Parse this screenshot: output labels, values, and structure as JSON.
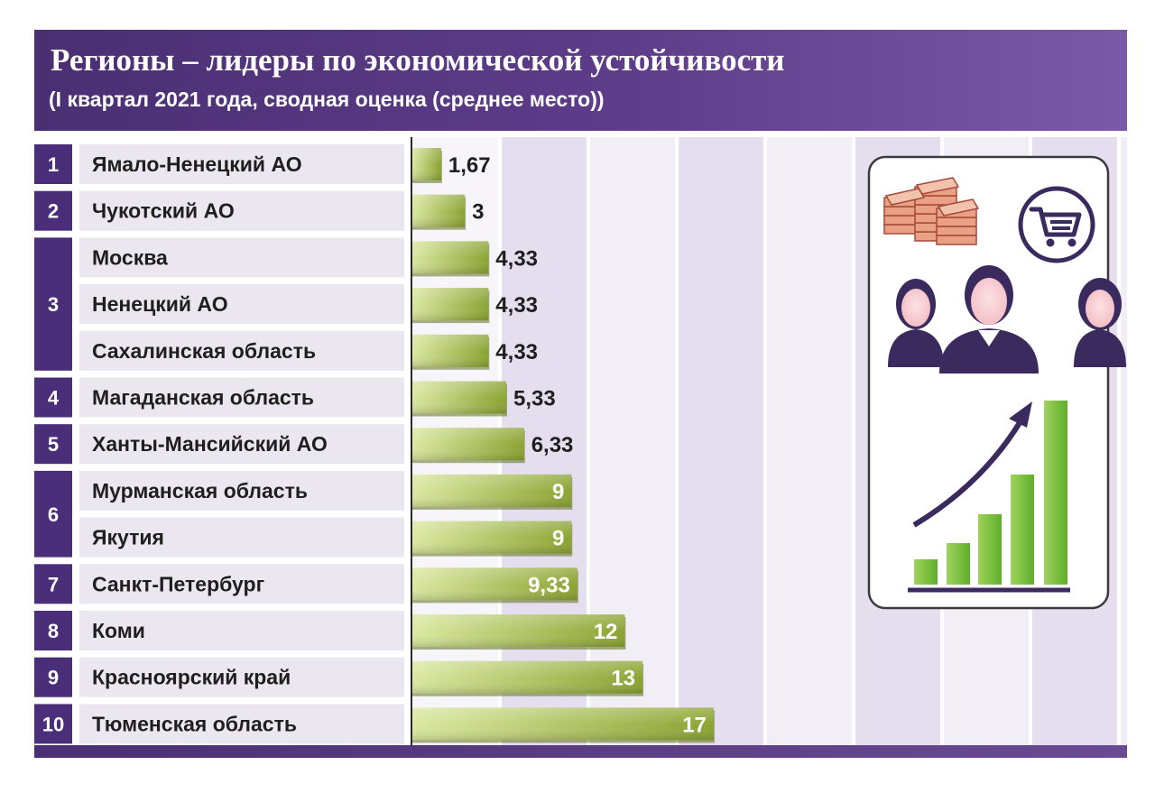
{
  "header": {
    "title": "Регионы – лидеры по экономической устойчивости",
    "subtitle": "(I квартал 2021 года, сводная оценка (среднее место))"
  },
  "colors": {
    "header_purple": "#4a2f73",
    "rank_purple": "#4b2e7a",
    "label_bg": "#ebe7f1",
    "bar_light": "#d8e59a",
    "bar_dark": "#8aa331",
    "stripe": "#e4deee",
    "icon_purple": "#3b2a5e",
    "icon_green": "#7fbf3b"
  },
  "illustration": {
    "icons": [
      "money-stacks-icon",
      "shopping-cart-icon",
      "people-icon",
      "growth-chart-icon"
    ]
  },
  "chart_data": {
    "type": "bar",
    "orientation": "horizontal",
    "title": "Регионы – лидеры по экономической устойчивости",
    "subtitle": "(I квартал 2021 года, сводная оценка (среднее место))",
    "xlim": [
      0,
      34
    ],
    "grid": true,
    "rows": [
      {
        "rank": "1",
        "region": "Ямало-Ненецкий АО",
        "value": 1.67,
        "label": "1,67"
      },
      {
        "rank": "2",
        "region": "Чукотский АО",
        "value": 3,
        "label": "3"
      },
      {
        "rank": "3",
        "region": "Москва",
        "value": 4.33,
        "label": "4,33"
      },
      {
        "rank": "3",
        "region": "Ненецкий АО",
        "value": 4.33,
        "label": "4,33"
      },
      {
        "rank": "3",
        "region": "Сахалинская область",
        "value": 4.33,
        "label": "4,33"
      },
      {
        "rank": "4",
        "region": "Магаданская область",
        "value": 5.33,
        "label": "5,33"
      },
      {
        "rank": "5",
        "region": "Ханты-Мансийский АО",
        "value": 6.33,
        "label": "6,33"
      },
      {
        "rank": "6",
        "region": "Мурманская область",
        "value": 9,
        "label": "9"
      },
      {
        "rank": "6",
        "region": "Якутия",
        "value": 9,
        "label": "9"
      },
      {
        "rank": "7",
        "region": "Санкт-Петербург",
        "value": 9.33,
        "label": "9,33"
      },
      {
        "rank": "8",
        "region": "Коми",
        "value": 12,
        "label": "12"
      },
      {
        "rank": "9",
        "region": "Красноярский край",
        "value": 13,
        "label": "13"
      },
      {
        "rank": "10",
        "region": "Тюменская область",
        "value": 17,
        "label": "17"
      }
    ],
    "rank_groups": [
      {
        "rank": "1",
        "from": 0,
        "to": 0
      },
      {
        "rank": "2",
        "from": 1,
        "to": 1
      },
      {
        "rank": "3",
        "from": 2,
        "to": 4
      },
      {
        "rank": "4",
        "from": 5,
        "to": 5
      },
      {
        "rank": "5",
        "from": 6,
        "to": 6
      },
      {
        "rank": "6",
        "from": 7,
        "to": 8
      },
      {
        "rank": "7",
        "from": 9,
        "to": 9
      },
      {
        "rank": "8",
        "from": 10,
        "to": 10
      },
      {
        "rank": "9",
        "from": 11,
        "to": 11
      },
      {
        "rank": "10",
        "from": 12,
        "to": 12
      }
    ]
  }
}
